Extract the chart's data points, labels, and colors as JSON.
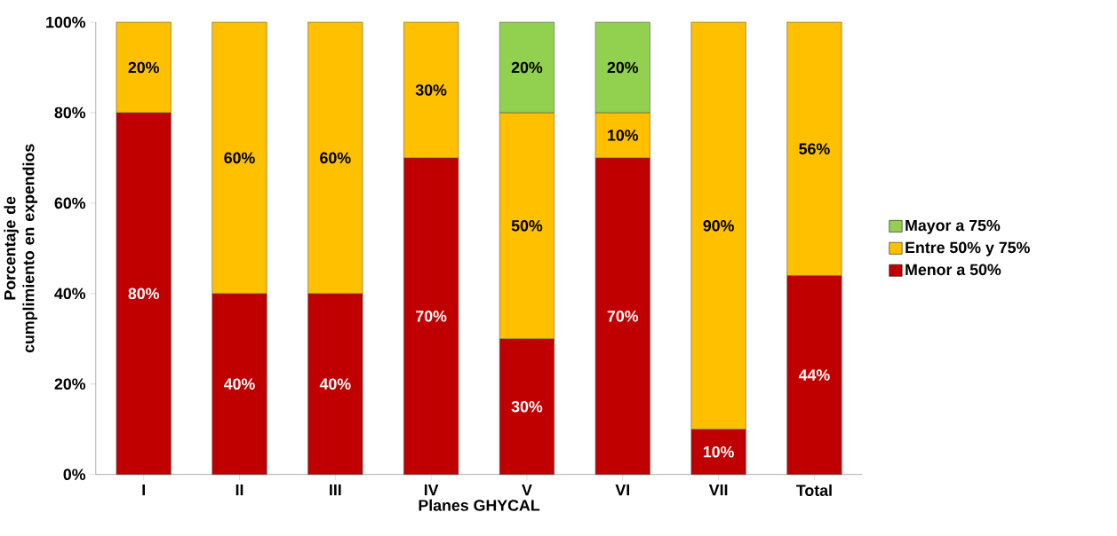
{
  "chart_data": {
    "type": "bar",
    "stacked": true,
    "xlabel": "Planes GHYCAL",
    "ylabel": "Porcentaje de cumplimiento en expendios",
    "categories": [
      "I",
      "II",
      "III",
      "IV",
      "V",
      "VI",
      "VII",
      "Total"
    ],
    "series": [
      {
        "name": "Menor a 50%",
        "color": "#c00000",
        "values": [
          80,
          40,
          40,
          70,
          30,
          70,
          10,
          44
        ],
        "value_labels": [
          "80%",
          "40%",
          "40%",
          "70%",
          "30%",
          "70%",
          "10%",
          "44%"
        ]
      },
      {
        "name": "Entre 50% y 75%",
        "color": "#ffc000",
        "values": [
          20,
          60,
          60,
          30,
          50,
          10,
          90,
          56
        ],
        "value_labels": [
          "20%",
          "60%",
          "60%",
          "30%",
          "50%",
          "10%",
          "90%",
          "56%"
        ]
      },
      {
        "name": "Mayor a 75%",
        "color": "#92d050",
        "values": [
          null,
          null,
          null,
          null,
          20,
          20,
          null,
          null
        ],
        "value_labels": [
          null,
          null,
          null,
          null,
          "20%",
          "20%",
          null,
          null
        ]
      }
    ],
    "ylim": [
      0,
      100
    ],
    "yticks": [
      {
        "value": 0,
        "label": "0%"
      },
      {
        "value": 20,
        "label": "20%"
      },
      {
        "value": 40,
        "label": "40%"
      },
      {
        "value": 60,
        "label": "60%"
      },
      {
        "value": 80,
        "label": "80%"
      },
      {
        "value": 100,
        "label": "100%"
      }
    ],
    "legend": "right",
    "grid": false
  }
}
